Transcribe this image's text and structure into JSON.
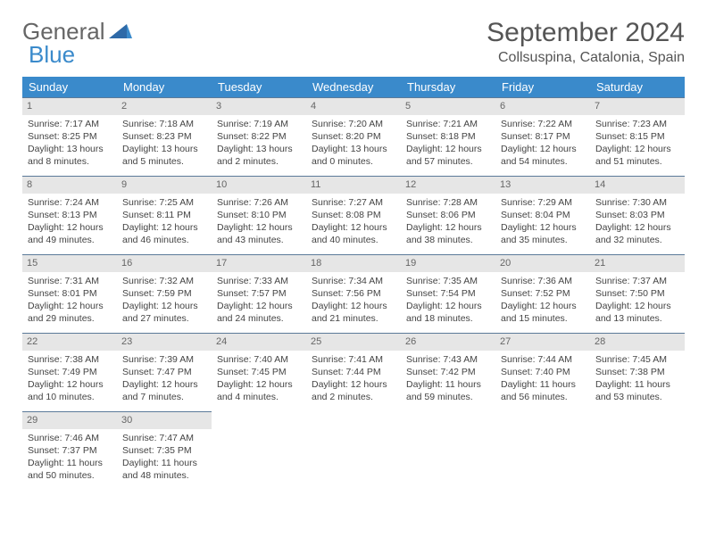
{
  "logo": {
    "word1": "General",
    "word2": "Blue"
  },
  "header": {
    "month_title": "September 2024",
    "location": "Collsuspina, Catalonia, Spain"
  },
  "colors": {
    "header_bg": "#3a8acb",
    "daynum_bg": "#e6e6e6",
    "row_border": "#5b7a99",
    "text": "#444"
  },
  "weekdays": [
    "Sunday",
    "Monday",
    "Tuesday",
    "Wednesday",
    "Thursday",
    "Friday",
    "Saturday"
  ],
  "days": [
    {
      "n": "1",
      "sunrise": "Sunrise: 7:17 AM",
      "sunset": "Sunset: 8:25 PM",
      "daylight": "Daylight: 13 hours and 8 minutes."
    },
    {
      "n": "2",
      "sunrise": "Sunrise: 7:18 AM",
      "sunset": "Sunset: 8:23 PM",
      "daylight": "Daylight: 13 hours and 5 minutes."
    },
    {
      "n": "3",
      "sunrise": "Sunrise: 7:19 AM",
      "sunset": "Sunset: 8:22 PM",
      "daylight": "Daylight: 13 hours and 2 minutes."
    },
    {
      "n": "4",
      "sunrise": "Sunrise: 7:20 AM",
      "sunset": "Sunset: 8:20 PM",
      "daylight": "Daylight: 13 hours and 0 minutes."
    },
    {
      "n": "5",
      "sunrise": "Sunrise: 7:21 AM",
      "sunset": "Sunset: 8:18 PM",
      "daylight": "Daylight: 12 hours and 57 minutes."
    },
    {
      "n": "6",
      "sunrise": "Sunrise: 7:22 AM",
      "sunset": "Sunset: 8:17 PM",
      "daylight": "Daylight: 12 hours and 54 minutes."
    },
    {
      "n": "7",
      "sunrise": "Sunrise: 7:23 AM",
      "sunset": "Sunset: 8:15 PM",
      "daylight": "Daylight: 12 hours and 51 minutes."
    },
    {
      "n": "8",
      "sunrise": "Sunrise: 7:24 AM",
      "sunset": "Sunset: 8:13 PM",
      "daylight": "Daylight: 12 hours and 49 minutes."
    },
    {
      "n": "9",
      "sunrise": "Sunrise: 7:25 AM",
      "sunset": "Sunset: 8:11 PM",
      "daylight": "Daylight: 12 hours and 46 minutes."
    },
    {
      "n": "10",
      "sunrise": "Sunrise: 7:26 AM",
      "sunset": "Sunset: 8:10 PM",
      "daylight": "Daylight: 12 hours and 43 minutes."
    },
    {
      "n": "11",
      "sunrise": "Sunrise: 7:27 AM",
      "sunset": "Sunset: 8:08 PM",
      "daylight": "Daylight: 12 hours and 40 minutes."
    },
    {
      "n": "12",
      "sunrise": "Sunrise: 7:28 AM",
      "sunset": "Sunset: 8:06 PM",
      "daylight": "Daylight: 12 hours and 38 minutes."
    },
    {
      "n": "13",
      "sunrise": "Sunrise: 7:29 AM",
      "sunset": "Sunset: 8:04 PM",
      "daylight": "Daylight: 12 hours and 35 minutes."
    },
    {
      "n": "14",
      "sunrise": "Sunrise: 7:30 AM",
      "sunset": "Sunset: 8:03 PM",
      "daylight": "Daylight: 12 hours and 32 minutes."
    },
    {
      "n": "15",
      "sunrise": "Sunrise: 7:31 AM",
      "sunset": "Sunset: 8:01 PM",
      "daylight": "Daylight: 12 hours and 29 minutes."
    },
    {
      "n": "16",
      "sunrise": "Sunrise: 7:32 AM",
      "sunset": "Sunset: 7:59 PM",
      "daylight": "Daylight: 12 hours and 27 minutes."
    },
    {
      "n": "17",
      "sunrise": "Sunrise: 7:33 AM",
      "sunset": "Sunset: 7:57 PM",
      "daylight": "Daylight: 12 hours and 24 minutes."
    },
    {
      "n": "18",
      "sunrise": "Sunrise: 7:34 AM",
      "sunset": "Sunset: 7:56 PM",
      "daylight": "Daylight: 12 hours and 21 minutes."
    },
    {
      "n": "19",
      "sunrise": "Sunrise: 7:35 AM",
      "sunset": "Sunset: 7:54 PM",
      "daylight": "Daylight: 12 hours and 18 minutes."
    },
    {
      "n": "20",
      "sunrise": "Sunrise: 7:36 AM",
      "sunset": "Sunset: 7:52 PM",
      "daylight": "Daylight: 12 hours and 15 minutes."
    },
    {
      "n": "21",
      "sunrise": "Sunrise: 7:37 AM",
      "sunset": "Sunset: 7:50 PM",
      "daylight": "Daylight: 12 hours and 13 minutes."
    },
    {
      "n": "22",
      "sunrise": "Sunrise: 7:38 AM",
      "sunset": "Sunset: 7:49 PM",
      "daylight": "Daylight: 12 hours and 10 minutes."
    },
    {
      "n": "23",
      "sunrise": "Sunrise: 7:39 AM",
      "sunset": "Sunset: 7:47 PM",
      "daylight": "Daylight: 12 hours and 7 minutes."
    },
    {
      "n": "24",
      "sunrise": "Sunrise: 7:40 AM",
      "sunset": "Sunset: 7:45 PM",
      "daylight": "Daylight: 12 hours and 4 minutes."
    },
    {
      "n": "25",
      "sunrise": "Sunrise: 7:41 AM",
      "sunset": "Sunset: 7:44 PM",
      "daylight": "Daylight: 12 hours and 2 minutes."
    },
    {
      "n": "26",
      "sunrise": "Sunrise: 7:43 AM",
      "sunset": "Sunset: 7:42 PM",
      "daylight": "Daylight: 11 hours and 59 minutes."
    },
    {
      "n": "27",
      "sunrise": "Sunrise: 7:44 AM",
      "sunset": "Sunset: 7:40 PM",
      "daylight": "Daylight: 11 hours and 56 minutes."
    },
    {
      "n": "28",
      "sunrise": "Sunrise: 7:45 AM",
      "sunset": "Sunset: 7:38 PM",
      "daylight": "Daylight: 11 hours and 53 minutes."
    },
    {
      "n": "29",
      "sunrise": "Sunrise: 7:46 AM",
      "sunset": "Sunset: 7:37 PM",
      "daylight": "Daylight: 11 hours and 50 minutes."
    },
    {
      "n": "30",
      "sunrise": "Sunrise: 7:47 AM",
      "sunset": "Sunset: 7:35 PM",
      "daylight": "Daylight: 11 hours and 48 minutes."
    }
  ],
  "layout": {
    "start_offset": 0,
    "total_cells": 35
  }
}
